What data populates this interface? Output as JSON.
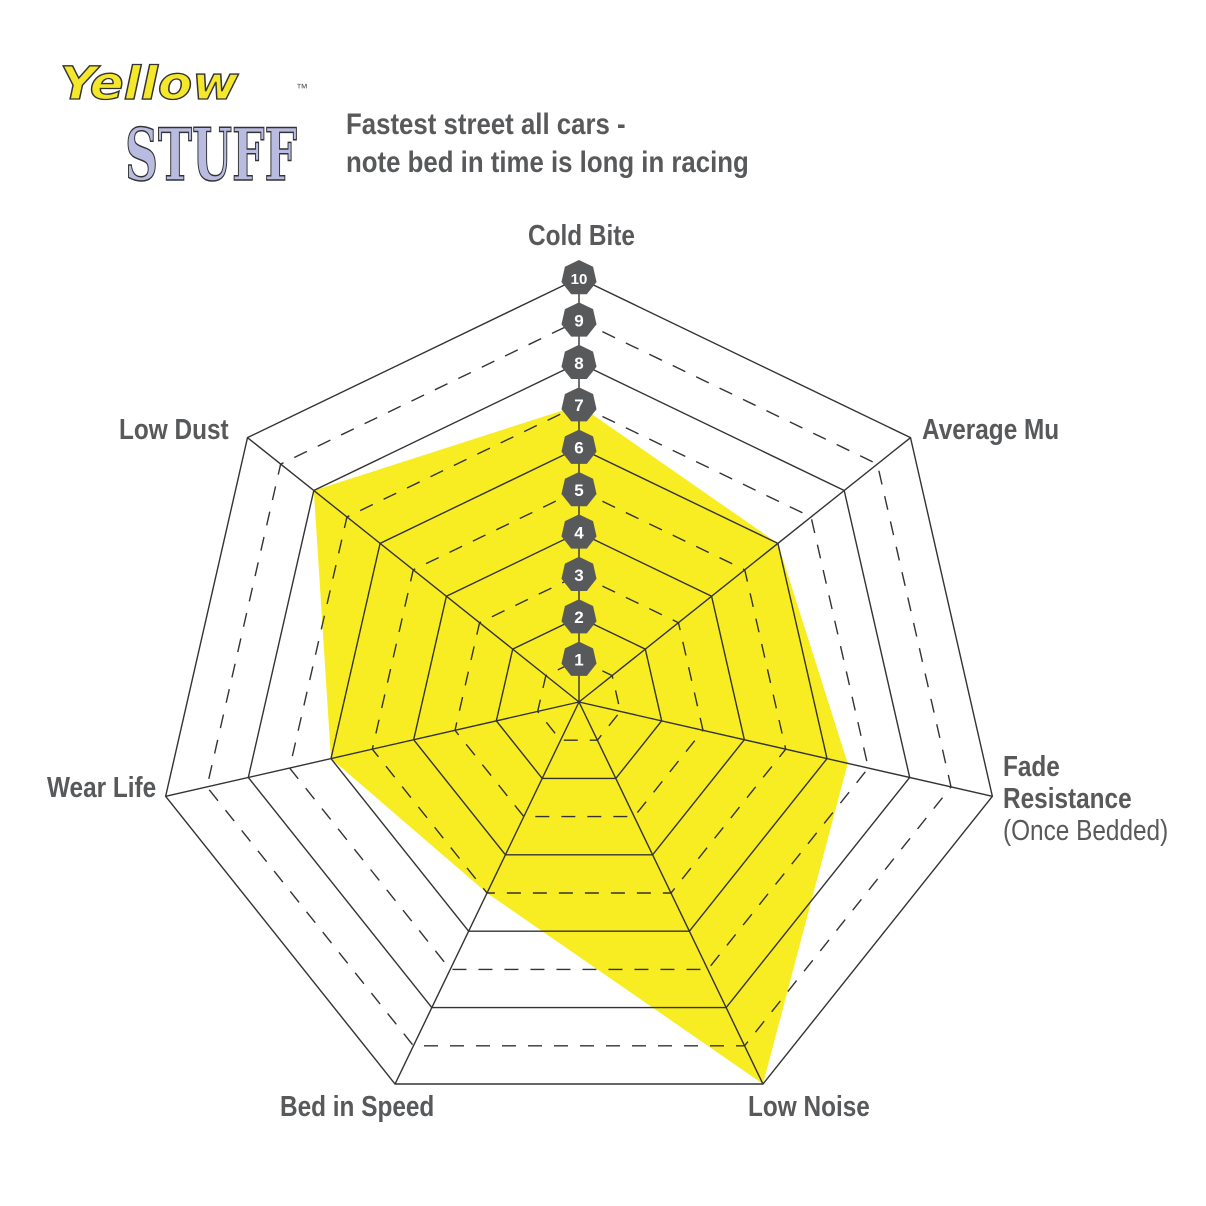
{
  "logo": {
    "line1": "Yellow",
    "line2": "STUFF",
    "tm": "™",
    "colors": {
      "yellow": "#f5e82a",
      "lavender": "#b9bce0"
    }
  },
  "subtitle": {
    "line1": "Fastest street all cars -",
    "line2": "note bed in time is long in racing"
  },
  "chart_data": {
    "type": "radar",
    "axes": [
      "Cold Bite",
      "Average Mu",
      "Fade Resistance (Once Bedded)",
      "Low Noise",
      "Bed in Speed",
      "Wear Life",
      "Low Dust"
    ],
    "axis_labels": {
      "cold_bite": "Cold Bite",
      "average_mu": "Average Mu",
      "fade_1": "Fade",
      "fade_2": "Resistance",
      "fade_3": "(Once Bedded)",
      "low_noise": "Low Noise",
      "bed_in_speed": "Bed in Speed",
      "wear_life": "Wear Life",
      "low_dust": "Low Dust"
    },
    "values": [
      7,
      6,
      6.5,
      10,
      5,
      6,
      8
    ],
    "range": [
      0,
      10
    ],
    "ticks": [
      "1",
      "2",
      "3",
      "4",
      "5",
      "6",
      "7",
      "8",
      "9",
      "10"
    ],
    "grid": "solid at even levels, dashed at odd levels",
    "fill_color": "#f8ec22",
    "grid_color": "#333333",
    "badge_color": "#58595b"
  }
}
